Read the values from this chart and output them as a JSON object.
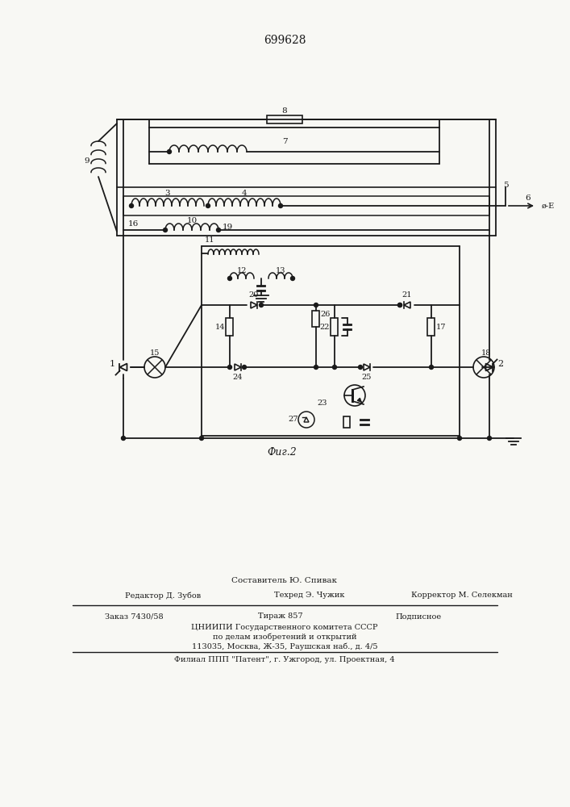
{
  "title": "699628",
  "fig_label": "Фиг.2",
  "background_color": "#f8f8f4",
  "line_color": "#1a1a1a",
  "text_color": "#1a1a1a",
  "footer_line1": "Составитель Ю. Спивак",
  "footer_line2": "Редактор Д. Зубов",
  "footer_line2b": "Техред Э. Чужик",
  "footer_line2c": "Корректор М. Селекман",
  "footer_line3a": "Заказ 7430/58",
  "footer_line3b": "Тираж 857",
  "footer_line3c": "Подписное",
  "footer_line4": "ЦНИИПИ Государственного комитета СССР",
  "footer_line5": "по делам изобретений и открытий",
  "footer_line6": "113035, Москва, Ж-35, Раушская наб., д. 4/5",
  "footer_line7": "Филиал ППП \"Патент\", г. Ужгород, ул. Проектная, 4"
}
